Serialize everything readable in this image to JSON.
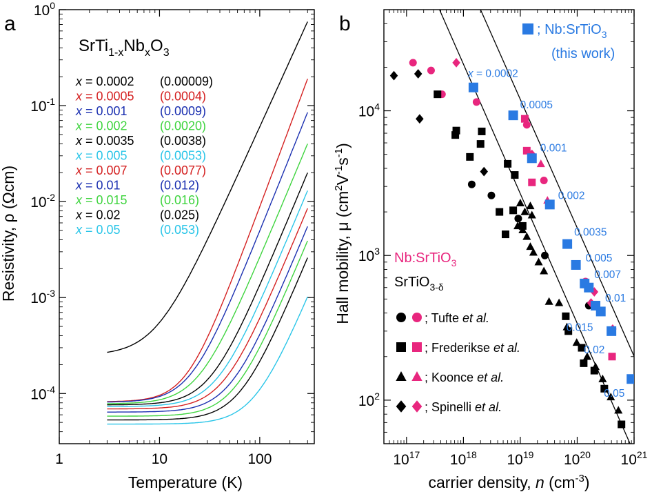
{
  "panel_a": {
    "label": "a",
    "compound": {
      "base": "SrTi",
      "sub1": "1-x",
      "mid": "Nb",
      "sub2": "x",
      "end": "O",
      "sub3": "3"
    },
    "xlabel": "Temperature (K)",
    "ylabel": "Resistivity, ρ (Ωcm)",
    "x_ticks": [
      "1",
      "10",
      "100"
    ],
    "y_ticks": [
      {
        "m": "10",
        "e": "0"
      },
      {
        "m": "10",
        "e": "-1"
      },
      {
        "m": "10",
        "e": "-2"
      },
      {
        "m": "10",
        "e": "-3"
      },
      {
        "m": "10",
        "e": "-4"
      }
    ]
  },
  "panel_b": {
    "label": "b",
    "xlabel": "carrier density, n (cm",
    "xlabel_exp": "-3",
    "ylabel": "Hall mobility, μ (cm",
    "x_ticks": [
      {
        "m": "10",
        "e": "17"
      },
      {
        "m": "10",
        "e": "18"
      },
      {
        "m": "10",
        "e": "19"
      },
      {
        "m": "10",
        "e": "20"
      },
      {
        "m": "10",
        "e": "21"
      }
    ],
    "y_ticks": [
      {
        "m": "10",
        "e": "4"
      },
      {
        "m": "10",
        "e": "3"
      },
      {
        "m": "10",
        "e": "2"
      }
    ],
    "this_work": {
      "text": "; Nb:SrTiO",
      "sub": "3",
      "line2": "(this work)"
    },
    "nb_label": {
      "text": "Nb:SrTiO",
      "sub": "3"
    },
    "srtio_label": {
      "text": "SrTiO",
      "sub": "3-δ"
    },
    "refs": [
      {
        "name": "; Tufte ",
        "etal": "et al."
      },
      {
        "name": "; Frederikse ",
        "etal": "et al."
      },
      {
        "name": "; Koonce ",
        "etal": "et al."
      },
      {
        "name": "; Spinelli ",
        "etal": "et al."
      }
    ]
  },
  "colors": {
    "black": "#000000",
    "red": "#d42020",
    "blue": "#1a2fb0",
    "green": "#3ed43e",
    "cyan": "#29c5e8",
    "this_work": "#2a7ae2",
    "pink": "#e8267e"
  },
  "chart_data": [
    {
      "type": "line",
      "title": "SrTi1-xNbxO3",
      "xlabel": "Temperature (K)",
      "ylabel": "Resistivity, ρ (Ωcm)",
      "xscale": "log",
      "yscale": "log",
      "xlim": [
        1,
        350
      ],
      "ylim": [
        3e-05,
        1
      ],
      "series": [
        {
          "name": "x = 0.0002",
          "nominal": "0.0002",
          "measured": "(0.00009)",
          "color": "#000000",
          "rho0": 0.00025,
          "rho300": 0.75,
          "knee": 35,
          "exp": 2.3,
          "Tmin": 3
        },
        {
          "name": "x = 0.0005",
          "nominal": "0.0005",
          "measured": "(0.0004)",
          "color": "#d42020",
          "rho0": 8.2e-05,
          "rho300": 0.19,
          "knee": 12,
          "exp": 2.8,
          "Tmin": 3
        },
        {
          "name": "x = 0.001",
          "nominal": "0.001",
          "measured": "(0.0009)",
          "color": "#1a2fb0",
          "rho0": 8.1e-05,
          "rho300": 0.085,
          "knee": 10,
          "exp": 2.6,
          "Tmin": 3
        },
        {
          "name": "x = 0.002",
          "nominal": "0.002",
          "measured": "(0.0020)",
          "color": "#3ed43e",
          "rho0": 7.8e-05,
          "rho300": 0.04,
          "knee": 14,
          "exp": 2.5,
          "Tmin": 3
        },
        {
          "name": "x = 0.0035",
          "nominal": "0.0035",
          "measured": "(0.0038)",
          "color": "#000000",
          "rho0": 7.6e-05,
          "rho300": 0.02,
          "knee": 16,
          "exp": 2.5,
          "Tmin": 3
        },
        {
          "name": "x = 0.005",
          "nominal": "0.005",
          "measured": "(0.0053)",
          "color": "#29c5e8",
          "rho0": 7.3e-05,
          "rho300": 0.013,
          "knee": 18,
          "exp": 2.5,
          "Tmin": 3
        },
        {
          "name": "x = 0.007",
          "nominal": "0.007",
          "measured": "(0.0077)",
          "color": "#d42020",
          "rho0": 6.9e-05,
          "rho300": 0.0085,
          "knee": 20,
          "exp": 2.5,
          "Tmin": 3
        },
        {
          "name": "x = 0.01",
          "nominal": "0.01",
          "measured": "(0.012)",
          "color": "#1a2fb0",
          "rho0": 6.4e-05,
          "rho300": 0.0055,
          "knee": 22,
          "exp": 2.5,
          "Tmin": 3
        },
        {
          "name": "x = 0.015",
          "nominal": "0.015",
          "measured": "(0.016)",
          "color": "#3ed43e",
          "rho0": 5.8e-05,
          "rho300": 0.0039,
          "knee": 24,
          "exp": 2.5,
          "Tmin": 3
        },
        {
          "name": "x = 0.02",
          "nominal": "0.02",
          "measured": "(0.025)",
          "color": "#000000",
          "rho0": 5.3e-05,
          "rho300": 0.0026,
          "knee": 26,
          "exp": 2.5,
          "Tmin": 3
        },
        {
          "name": "x = 0.05",
          "nominal": "0.05",
          "measured": "(0.053)",
          "color": "#29c5e8",
          "rho0": 4.8e-05,
          "rho300": 0.00102,
          "knee": 30,
          "exp": 2.5,
          "Tmin": 3
        }
      ]
    },
    {
      "type": "scatter",
      "xlabel": "carrier density, n (cm-3)",
      "ylabel": "Hall mobility, μ (cm2V-1s-1)",
      "xscale": "log",
      "yscale": "log",
      "xlim": [
        4e+16,
        1e+21
      ],
      "ylim": [
        50,
        50000
      ],
      "fit_lines": [
        {
          "name": "SrTiO3-δ fit",
          "points": [
            [
              3.8e+17,
              50000
            ],
            [
              8.5e+20,
              50
            ]
          ]
        },
        {
          "name": "Nb:SrTiO3 fit",
          "points": [
            [
              2e+18,
              50000
            ],
            [
              4.8e+21,
              50
            ]
          ]
        }
      ],
      "this_work": {
        "color": "#2a7ae2",
        "marker": "square",
        "points": [
          {
            "n": 1.5e+18,
            "mu": 14500,
            "label": "x = 0.0002"
          },
          {
            "n": 7.5e+18,
            "mu": 9300,
            "label": "0.0005"
          },
          {
            "n": 1.6e+19,
            "mu": 4700,
            "label": "0.001"
          },
          {
            "n": 3.3e+19,
            "mu": 2250,
            "label": "0.002"
          },
          {
            "n": 6.7e+19,
            "mu": 1200,
            "label": "0.0035"
          },
          {
            "n": 9.5e+19,
            "mu": 860,
            "label": "0.005"
          },
          {
            "n": 1.35e+20,
            "mu": 640,
            "label": "0.007"
          },
          {
            "n": 1.6e+20,
            "mu": 600,
            "label": ""
          },
          {
            "n": 2.1e+20,
            "mu": 450,
            "label": "0.01"
          },
          {
            "n": 2.6e+20,
            "mu": 410,
            "label": "0.015"
          },
          {
            "n": 4e+20,
            "mu": 300,
            "label": "0.02"
          },
          {
            "n": 9e+20,
            "mu": 140,
            "label": "0.05"
          }
        ]
      },
      "literature": [
        {
          "ref": "Tufte et al.",
          "marker": "circle",
          "pink": [
            [
              1.3e+17,
              21500
            ],
            [
              2.7e+17,
              19000
            ],
            [
              4.2e+17,
              13000
            ],
            [
              1.7e+18,
              11500
            ],
            [
              1.3e+19,
              8000
            ],
            [
              2.6e+19,
              3300
            ],
            [
              1.4e+20,
              660
            ]
          ],
          "black": [
            [
              1.4e+18,
              3100
            ],
            [
              3.1e+18,
              2600
            ],
            [
              9.2e+18,
              1800
            ],
            [
              2.7e+19,
              1000
            ],
            [
              1.6e+20,
              450
            ]
          ]
        },
        {
          "ref": "Frederikse et al.",
          "marker": "square",
          "pink": [
            [
              1.2e+19,
              8800
            ],
            [
              1.3e+19,
              5300
            ],
            [
              1.6e+19,
              3200
            ],
            [
              4.1e+20,
              200
            ]
          ],
          "black": [
            [
              3.5e+17,
              13000
            ],
            [
              7.5e+17,
              7300
            ],
            [
              7.2e+17,
              6800
            ],
            [
              2e+18,
              5900
            ],
            [
              2.1e+18,
              7200
            ],
            [
              1.3e+18,
              4800
            ],
            [
              6e+18,
              4300
            ],
            [
              8e+18,
              3600
            ],
            [
              1.1e+19,
              1600
            ],
            [
              7.5e+18,
              2050
            ],
            [
              4.3e+18,
              2000
            ],
            [
              5.5e+18,
              1400
            ],
            [
              6.3e+19,
              380
            ],
            [
              7e+19,
              300
            ],
            [
              1.2e+20,
              230
            ],
            [
              1.3e+20,
              180
            ],
            [
              2e+20,
              160
            ],
            [
              3e+20,
              120
            ],
            [
              6e+20,
              68
            ]
          ]
        },
        {
          "ref": "Koonce et al.",
          "marker": "triangle",
          "pink": [
            [
              2.3e+19,
              4300
            ],
            [
              3e+19,
              2400
            ]
          ],
          "black": [
            [
              1e+19,
              2300
            ],
            [
              1.2e+19,
              2000
            ],
            [
              1.5e+19,
              2200
            ],
            [
              1.6e+19,
              1900
            ],
            [
              9e+18,
              1600
            ],
            [
              1.1e+19,
              1500
            ],
            [
              1.3e+19,
              1350
            ],
            [
              1.5e+19,
              1150
            ],
            [
              1.7e+19,
              1050
            ],
            [
              2.1e+19,
              900
            ],
            [
              2.6e+19,
              780
            ],
            [
              3.2e+19,
              480
            ],
            [
              4.8e+19,
              470
            ],
            [
              6.6e+19,
              320
            ],
            [
              9.8e+19,
              250
            ],
            [
              1.5e+20,
              200
            ],
            [
              2.1e+20,
              170
            ],
            [
              2.8e+20,
              140
            ],
            [
              3.9e+20,
              105
            ],
            [
              5.3e+20,
              85
            ]
          ]
        },
        {
          "ref": "Spinelli et al.",
          "marker": "diamond",
          "pink": [
            [
              7.5e+17,
              21500
            ],
            [
              1.6e+19,
              5000
            ],
            [
              1.75e+20,
              470
            ],
            [
              2e+20,
              560
            ],
            [
              4.2e+20,
              310
            ]
          ],
          "black": [
            [
              6e+16,
              17500
            ],
            [
              1.6e+17,
              18000
            ],
            [
              1.7e+17,
              8800
            ],
            [
              2.3e+18,
              3800
            ]
          ]
        }
      ]
    }
  ]
}
